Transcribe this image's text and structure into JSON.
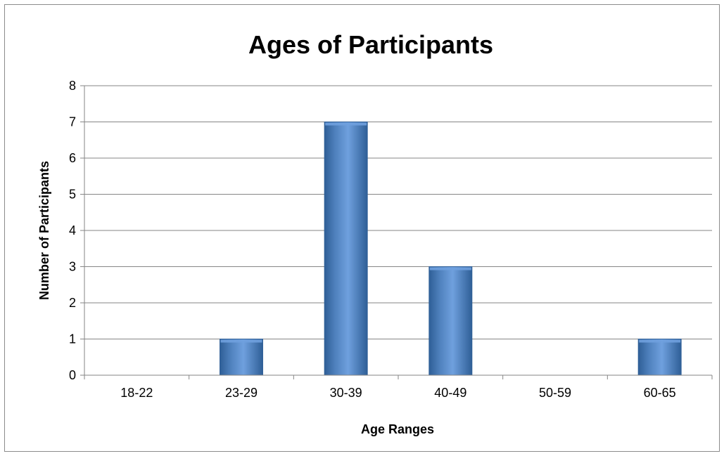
{
  "chart_data": {
    "type": "bar",
    "title": "Ages of Participants",
    "xlabel": "Age Ranges",
    "ylabel": "Number of Participants",
    "categories": [
      "18-22",
      "23-29",
      "30-39",
      "40-49",
      "50-59",
      "60-65"
    ],
    "values": [
      0,
      1,
      7,
      3,
      0,
      1
    ],
    "ylim": [
      0,
      8
    ],
    "yticks": [
      "0",
      "1",
      "2",
      "3",
      "4",
      "5",
      "6",
      "7",
      "8"
    ],
    "grid": true,
    "legend": "none",
    "colors": {
      "bar_fill": "#4f81bd",
      "bar_light": "#6fa0de",
      "bar_dark": "#2f5f97",
      "gridline": "#868686",
      "axis": "#868686"
    }
  }
}
